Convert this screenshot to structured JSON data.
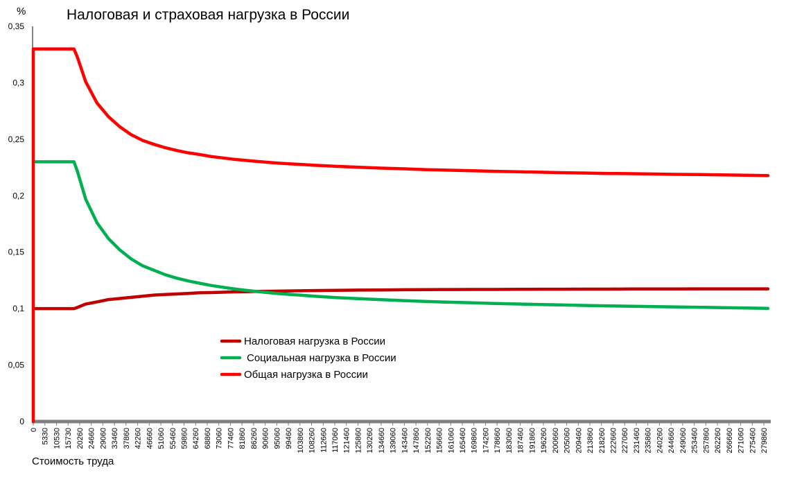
{
  "chart_data": {
    "type": "line",
    "title": "Налоговая и страховая нагрузка в России",
    "ylabel": "%",
    "xlabel": "Стоимость труда",
    "ylim": [
      0,
      0.35
    ],
    "yticks": [
      "0",
      "0,05",
      "0,1",
      "0,15",
      "0,2",
      "0,25",
      "0,3",
      "0,35"
    ],
    "ytick_values": [
      0,
      0.05,
      0.1,
      0.15,
      0.2,
      0.25,
      0.3,
      0.35
    ],
    "x_categories": [
      "0",
      "5330",
      "10530",
      "15730",
      "20260",
      "24660",
      "29060",
      "33460",
      "37860",
      "42260",
      "46660",
      "51060",
      "55460",
      "59860",
      "64260",
      "68860",
      "73060",
      "77460",
      "81860",
      "86260",
      "90660",
      "95060",
      "99460",
      "103860",
      "108260",
      "112660",
      "117060",
      "121460",
      "125860",
      "130260",
      "134660",
      "139060",
      "143460",
      "147860",
      "152260",
      "156660",
      "161060",
      "165460",
      "169860",
      "174260",
      "178660",
      "183060",
      "187460",
      "191860",
      "196260",
      "200660",
      "205060",
      "209460",
      "213860",
      "218260",
      "222660",
      "227060",
      "231460",
      "235860",
      "240260",
      "244660",
      "249060",
      "253460",
      "257860",
      "262260",
      "266660",
      "271060",
      "275460",
      "279860"
    ],
    "grid": false,
    "legend_position": "center",
    "series": [
      {
        "name": "Налоговая нагрузка в России",
        "color": "#C00000",
        "x": [
          0,
          15730,
          17000,
          20260,
          24660,
          29060,
          33460,
          37860,
          42260,
          46660,
          51060,
          55460,
          59860,
          64260,
          68860,
          73060,
          77460,
          81860,
          86260,
          90660,
          95060,
          99460,
          103860,
          108260,
          117060,
          125860,
          134660,
          143460,
          152260,
          161060,
          169860,
          178660,
          187460,
          196260,
          205060,
          213860,
          222660,
          231460,
          240260,
          249060,
          257860,
          266660,
          275460,
          284000
        ],
        "values": [
          0.1,
          0.1,
          0.101,
          0.104,
          0.106,
          0.108,
          0.109,
          0.11,
          0.111,
          0.112,
          0.1125,
          0.113,
          0.1135,
          0.114,
          0.1142,
          0.1145,
          0.1148,
          0.115,
          0.1152,
          0.1154,
          0.1155,
          0.1157,
          0.1158,
          0.116,
          0.1162,
          0.1164,
          0.1165,
          0.1167,
          0.1168,
          0.1169,
          0.117,
          0.117,
          0.1171,
          0.1172,
          0.1172,
          0.1173,
          0.1173,
          0.1174,
          0.1174,
          0.1174,
          0.1175,
          0.1175,
          0.1175,
          0.1175
        ]
      },
      {
        "name": "Социальная нагрузка в России",
        "color": "#00B050",
        "x": [
          0,
          15730,
          17000,
          20260,
          24660,
          29060,
          33460,
          37860,
          42260,
          46660,
          51060,
          55460,
          59860,
          64260,
          68860,
          73060,
          77460,
          81860,
          86260,
          90660,
          95060,
          99460,
          103860,
          108260,
          117060,
          125860,
          134660,
          143460,
          152260,
          161060,
          169860,
          178660,
          187460,
          196260,
          205060,
          213860,
          222660,
          231460,
          240260,
          249060,
          257860,
          266660,
          275460,
          284000
        ],
        "values": [
          0.23,
          0.23,
          0.222,
          0.197,
          0.176,
          0.162,
          0.152,
          0.144,
          0.138,
          0.134,
          0.13,
          0.127,
          0.1245,
          0.1225,
          0.1205,
          0.119,
          0.1175,
          0.1163,
          0.1152,
          0.1142,
          0.1133,
          0.1125,
          0.1118,
          0.1111,
          0.1098,
          0.1088,
          0.1079,
          0.1071,
          0.1063,
          0.1057,
          0.1051,
          0.1046,
          0.1041,
          0.1036,
          0.1032,
          0.1028,
          0.1024,
          0.1021,
          0.1018,
          0.1015,
          0.1012,
          0.1009,
          0.1006,
          0.1003
        ]
      },
      {
        "name": "Общая нагрузка в России",
        "color": "#FF0000",
        "x": [
          0,
          15730,
          17000,
          20260,
          24660,
          29060,
          33460,
          37860,
          42260,
          46660,
          51060,
          55460,
          59860,
          64260,
          68860,
          73060,
          77460,
          81860,
          86260,
          90660,
          95060,
          99460,
          103860,
          108260,
          117060,
          125860,
          134660,
          143460,
          152260,
          161060,
          169860,
          178660,
          187460,
          196260,
          205060,
          213860,
          222660,
          231460,
          240260,
          249060,
          257860,
          266660,
          275460,
          284000
        ],
        "values": [
          0.33,
          0.33,
          0.323,
          0.301,
          0.282,
          0.27,
          0.261,
          0.254,
          0.249,
          0.2455,
          0.2425,
          0.24,
          0.238,
          0.2365,
          0.2347,
          0.2335,
          0.2323,
          0.2313,
          0.2304,
          0.2296,
          0.2288,
          0.2282,
          0.2276,
          0.2271,
          0.226,
          0.2252,
          0.2244,
          0.2238,
          0.2231,
          0.2226,
          0.2221,
          0.2216,
          0.2212,
          0.2208,
          0.2204,
          0.2201,
          0.2197,
          0.2195,
          0.2192,
          0.2189,
          0.2187,
          0.2184,
          0.2181,
          0.2178
        ]
      }
    ]
  }
}
